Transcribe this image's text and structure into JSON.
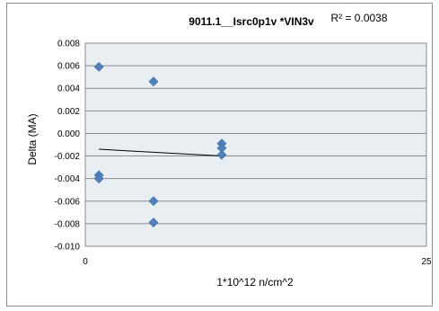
{
  "chart_data": {
    "type": "scatter",
    "title": "9011.1__Isrc0p1v  *VIN3v",
    "xlabel": "1*10^12 n/cm^2",
    "ylabel": "Delta (MA)",
    "xlim": [
      0,
      25
    ],
    "ylim": [
      -0.01,
      0.008
    ],
    "x_ticks": [
      "0",
      "25"
    ],
    "y_ticks": [
      "0.008",
      "0.006",
      "0.004",
      "0.002",
      "0.000",
      "-0.002",
      "-0.004",
      "-0.006",
      "-0.008",
      "-0.010"
    ],
    "y_tick_values": [
      0.008,
      0.006,
      0.004,
      0.002,
      0.0,
      -0.002,
      -0.004,
      -0.006,
      -0.008,
      -0.01
    ],
    "grid": true,
    "legend": "none",
    "points": [
      {
        "x": 1,
        "y": 0.0059
      },
      {
        "x": 1,
        "y": -0.0037
      },
      {
        "x": 1,
        "y": -0.004
      },
      {
        "x": 5,
        "y": 0.0046
      },
      {
        "x": 5,
        "y": -0.006
      },
      {
        "x": 5,
        "y": -0.0079
      },
      {
        "x": 10,
        "y": -0.0009
      },
      {
        "x": 10,
        "y": -0.0013
      },
      {
        "x": 10,
        "y": -0.0019
      }
    ],
    "trendline": {
      "x": [
        1,
        10
      ],
      "y": [
        -0.0014,
        -0.002
      ],
      "r2_label": "R² = 0.0038"
    },
    "colors": {
      "marker": "#4f81bd",
      "plot_background": "#e9eef2",
      "gridline": "#8c8c8c",
      "trendline": "#000000"
    }
  }
}
